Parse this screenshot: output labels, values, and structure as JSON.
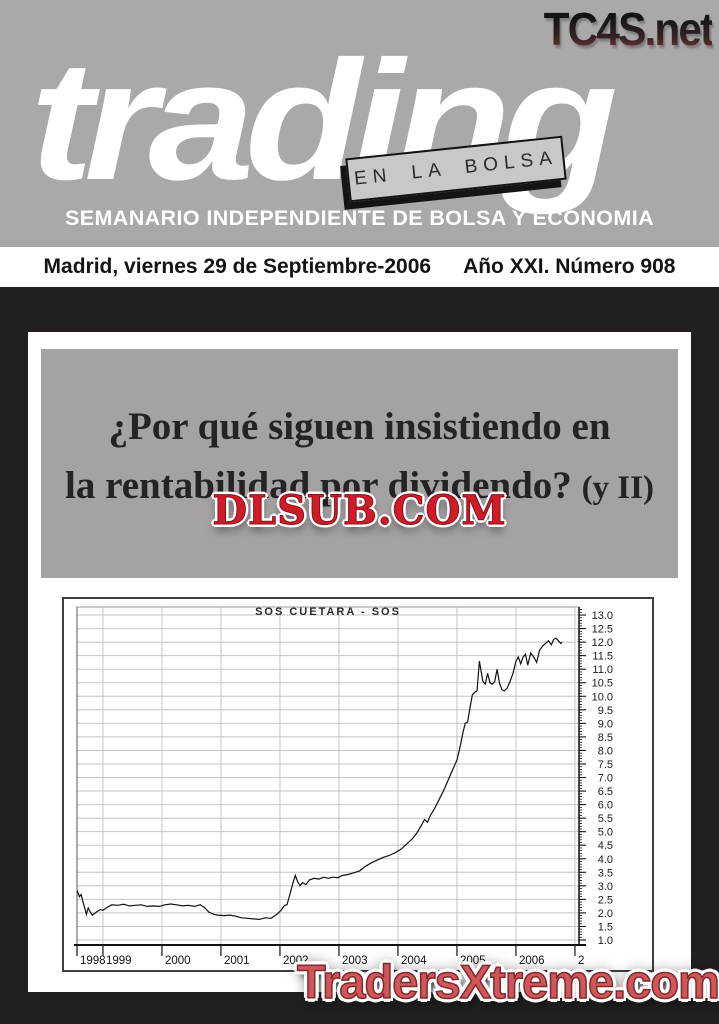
{
  "masthead": {
    "site_logo": "TC4S.net",
    "title": "trading",
    "tagline_box": "EN LA BOLSA",
    "subtitle": "SEMANARIO INDEPENDIENTE DE BOLSA Y ECONOMIA"
  },
  "date_bar": {
    "city_date": "Madrid, viernes 29 de Septiembre-2006",
    "issue": "Año XXI. Número 908"
  },
  "headline": {
    "line1": "¿Por qué siguen insistiendo en",
    "line2": "la rentabilidad por dividendo?",
    "line2_suffix": "(y II)"
  },
  "watermarks": {
    "center": "DLSUB.COM",
    "bottom": "TradersXtreme.com"
  },
  "colors": {
    "header_gray": "#aaa8a9",
    "headline_box_gray": "#a5a2a3",
    "body_black": "#231f20",
    "watermark_red": "#cf1c28",
    "bottom_watermark_red": "#d15659",
    "chart_line": "#111111",
    "grid_gray": "#c4c4c4"
  },
  "chart_data": {
    "type": "line",
    "title": "SOS CUETARA - SOS",
    "grid": true,
    "legend": false,
    "y_axis": {
      "min": 1.0,
      "max": 13.0,
      "step": 0.5,
      "side": "right",
      "minor_step": 0.1
    },
    "x_axis": {
      "ticks": [
        {
          "year": 1998,
          "label": "1998"
        },
        {
          "year": 1999,
          "label": "1999"
        },
        {
          "year": 2000,
          "label": "2000"
        },
        {
          "year": 2001,
          "label": "2001"
        },
        {
          "year": 2002,
          "label": "2002"
        },
        {
          "year": 2003,
          "label": "2003"
        },
        {
          "year": 2004,
          "label": "2004"
        },
        {
          "year": 2005,
          "label": "2005"
        },
        {
          "year": 2006,
          "label": "2006"
        },
        {
          "year": 2007,
          "label": "2"
        }
      ],
      "range_start": 1998.56,
      "range_end": 2006.78
    },
    "series": [
      {
        "name": "SOS CUETARA - SOS",
        "color": "#111111",
        "points": [
          [
            1998.56,
            2.85
          ],
          [
            1998.6,
            2.6
          ],
          [
            1998.63,
            2.68
          ],
          [
            1998.66,
            2.42
          ],
          [
            1998.7,
            2.1
          ],
          [
            1998.72,
            1.95
          ],
          [
            1998.75,
            2.18
          ],
          [
            1998.78,
            2.05
          ],
          [
            1998.82,
            1.92
          ],
          [
            1998.88,
            2.02
          ],
          [
            1998.95,
            2.12
          ],
          [
            1999.0,
            2.1
          ],
          [
            1999.08,
            2.22
          ],
          [
            1999.15,
            2.3
          ],
          [
            1999.25,
            2.28
          ],
          [
            1999.35,
            2.32
          ],
          [
            1999.45,
            2.26
          ],
          [
            1999.55,
            2.28
          ],
          [
            1999.65,
            2.3
          ],
          [
            1999.75,
            2.24
          ],
          [
            1999.85,
            2.26
          ],
          [
            1999.95,
            2.24
          ],
          [
            2000.05,
            2.3
          ],
          [
            2000.15,
            2.33
          ],
          [
            2000.25,
            2.3
          ],
          [
            2000.35,
            2.26
          ],
          [
            2000.45,
            2.28
          ],
          [
            2000.55,
            2.24
          ],
          [
            2000.65,
            2.3
          ],
          [
            2000.72,
            2.2
          ],
          [
            2000.8,
            2.02
          ],
          [
            2000.88,
            1.95
          ],
          [
            2000.95,
            1.92
          ],
          [
            2001.05,
            1.9
          ],
          [
            2001.15,
            1.92
          ],
          [
            2001.25,
            1.88
          ],
          [
            2001.35,
            1.82
          ],
          [
            2001.45,
            1.8
          ],
          [
            2001.55,
            1.78
          ],
          [
            2001.65,
            1.76
          ],
          [
            2001.75,
            1.82
          ],
          [
            2001.85,
            1.8
          ],
          [
            2001.95,
            1.95
          ],
          [
            2002.02,
            2.1
          ],
          [
            2002.08,
            2.28
          ],
          [
            2002.12,
            2.3
          ],
          [
            2002.17,
            2.7
          ],
          [
            2002.22,
            3.1
          ],
          [
            2002.26,
            3.38
          ],
          [
            2002.3,
            3.15
          ],
          [
            2002.34,
            3.0
          ],
          [
            2002.38,
            3.12
          ],
          [
            2002.44,
            3.05
          ],
          [
            2002.5,
            3.22
          ],
          [
            2002.58,
            3.28
          ],
          [
            2002.66,
            3.25
          ],
          [
            2002.74,
            3.32
          ],
          [
            2002.82,
            3.28
          ],
          [
            2002.9,
            3.32
          ],
          [
            2002.98,
            3.3
          ],
          [
            2003.06,
            3.38
          ],
          [
            2003.15,
            3.42
          ],
          [
            2003.25,
            3.48
          ],
          [
            2003.35,
            3.55
          ],
          [
            2003.45,
            3.72
          ],
          [
            2003.55,
            3.85
          ],
          [
            2003.65,
            3.95
          ],
          [
            2003.75,
            4.05
          ],
          [
            2003.85,
            4.12
          ],
          [
            2003.95,
            4.22
          ],
          [
            2004.05,
            4.35
          ],
          [
            2004.15,
            4.55
          ],
          [
            2004.25,
            4.75
          ],
          [
            2004.32,
            4.95
          ],
          [
            2004.4,
            5.25
          ],
          [
            2004.45,
            5.45
          ],
          [
            2004.5,
            5.35
          ],
          [
            2004.55,
            5.6
          ],
          [
            2004.62,
            5.85
          ],
          [
            2004.7,
            6.2
          ],
          [
            2004.78,
            6.55
          ],
          [
            2004.85,
            6.9
          ],
          [
            2004.92,
            7.25
          ],
          [
            2005.0,
            7.65
          ],
          [
            2005.05,
            8.1
          ],
          [
            2005.1,
            8.65
          ],
          [
            2005.14,
            9.0
          ],
          [
            2005.18,
            9.05
          ],
          [
            2005.22,
            9.55
          ],
          [
            2005.26,
            10.05
          ],
          [
            2005.3,
            10.15
          ],
          [
            2005.34,
            10.2
          ],
          [
            2005.38,
            11.3
          ],
          [
            2005.41,
            10.9
          ],
          [
            2005.44,
            10.55
          ],
          [
            2005.48,
            10.45
          ],
          [
            2005.52,
            10.85
          ],
          [
            2005.56,
            10.5
          ],
          [
            2005.6,
            10.45
          ],
          [
            2005.64,
            10.55
          ],
          [
            2005.68,
            11.0
          ],
          [
            2005.72,
            10.5
          ],
          [
            2005.76,
            10.25
          ],
          [
            2005.8,
            10.2
          ],
          [
            2005.85,
            10.3
          ],
          [
            2005.9,
            10.55
          ],
          [
            2005.95,
            10.85
          ],
          [
            2006.0,
            11.3
          ],
          [
            2006.04,
            11.45
          ],
          [
            2006.08,
            11.2
          ],
          [
            2006.12,
            11.45
          ],
          [
            2006.16,
            11.55
          ],
          [
            2006.2,
            11.15
          ],
          [
            2006.25,
            11.6
          ],
          [
            2006.3,
            11.45
          ],
          [
            2006.35,
            11.25
          ],
          [
            2006.4,
            11.7
          ],
          [
            2006.45,
            11.85
          ],
          [
            2006.5,
            11.95
          ],
          [
            2006.55,
            12.05
          ],
          [
            2006.6,
            11.9
          ],
          [
            2006.64,
            12.1
          ],
          [
            2006.68,
            12.15
          ],
          [
            2006.72,
            12.05
          ],
          [
            2006.76,
            11.95
          ],
          [
            2006.78,
            12.0
          ]
        ]
      }
    ]
  }
}
